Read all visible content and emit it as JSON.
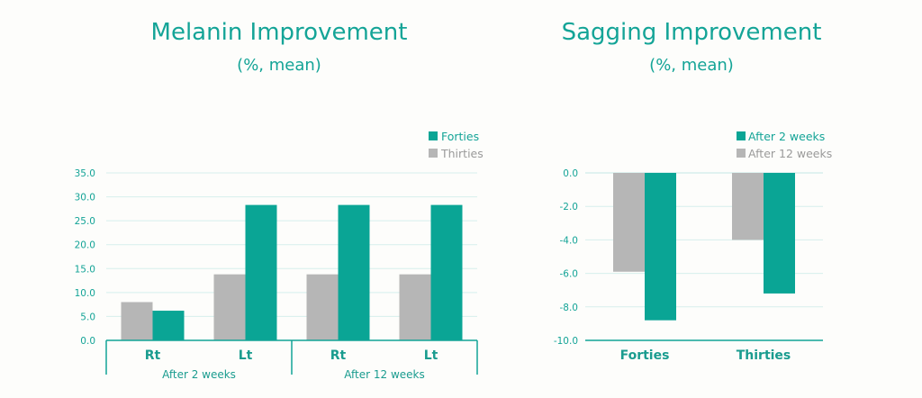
{
  "colors": {
    "teal": "#0aa595",
    "gray": "#b6b6b6",
    "grid": "#d6efec",
    "axis": "#12a396",
    "text": "#14a497",
    "legend_gray_text": "#9a9a9a"
  },
  "chart_data": [
    {
      "type": "bar",
      "title": "Melanin Improvement",
      "subtitle": "(%, mean)",
      "categories": [
        "Rt",
        "Lt",
        "Rt",
        "Lt"
      ],
      "groups": [
        {
          "label": "After 2 weeks",
          "categories": [
            "Rt",
            "Lt"
          ]
        },
        {
          "label": "After 12 weeks",
          "categories": [
            "Rt",
            "Lt"
          ]
        }
      ],
      "series": [
        {
          "name": "Thirties",
          "values": [
            8.0,
            13.8,
            13.8,
            13.8
          ]
        },
        {
          "name": "Forties",
          "values": [
            6.2,
            28.3,
            28.3,
            28.3
          ]
        }
      ],
      "legend": [
        "Forties",
        "Thirties"
      ],
      "legend_position": "top-right",
      "yticks": [
        "0.0",
        "5.0",
        "10.0",
        "15.0",
        "20.0",
        "25.0",
        "30.0",
        "35.0"
      ],
      "ylim": [
        0,
        35
      ],
      "grid": true
    },
    {
      "type": "bar",
      "title": "Sagging Improvement",
      "subtitle": "(%, mean)",
      "categories": [
        "Forties",
        "Thirties"
      ],
      "series": [
        {
          "name": "After 12 weeks",
          "values": [
            -5.9,
            -4.0
          ]
        },
        {
          "name": "After 2 weeks",
          "values": [
            -8.8,
            -7.2
          ]
        }
      ],
      "legend": [
        "After 2 weeks",
        "After 12 weeks"
      ],
      "legend_position": "top-right",
      "yticks": [
        "0.0",
        "-2.0",
        "-4.0",
        "-6.0",
        "-8.0",
        "-10.0"
      ],
      "ylim": [
        -10,
        0
      ],
      "grid": true
    }
  ]
}
